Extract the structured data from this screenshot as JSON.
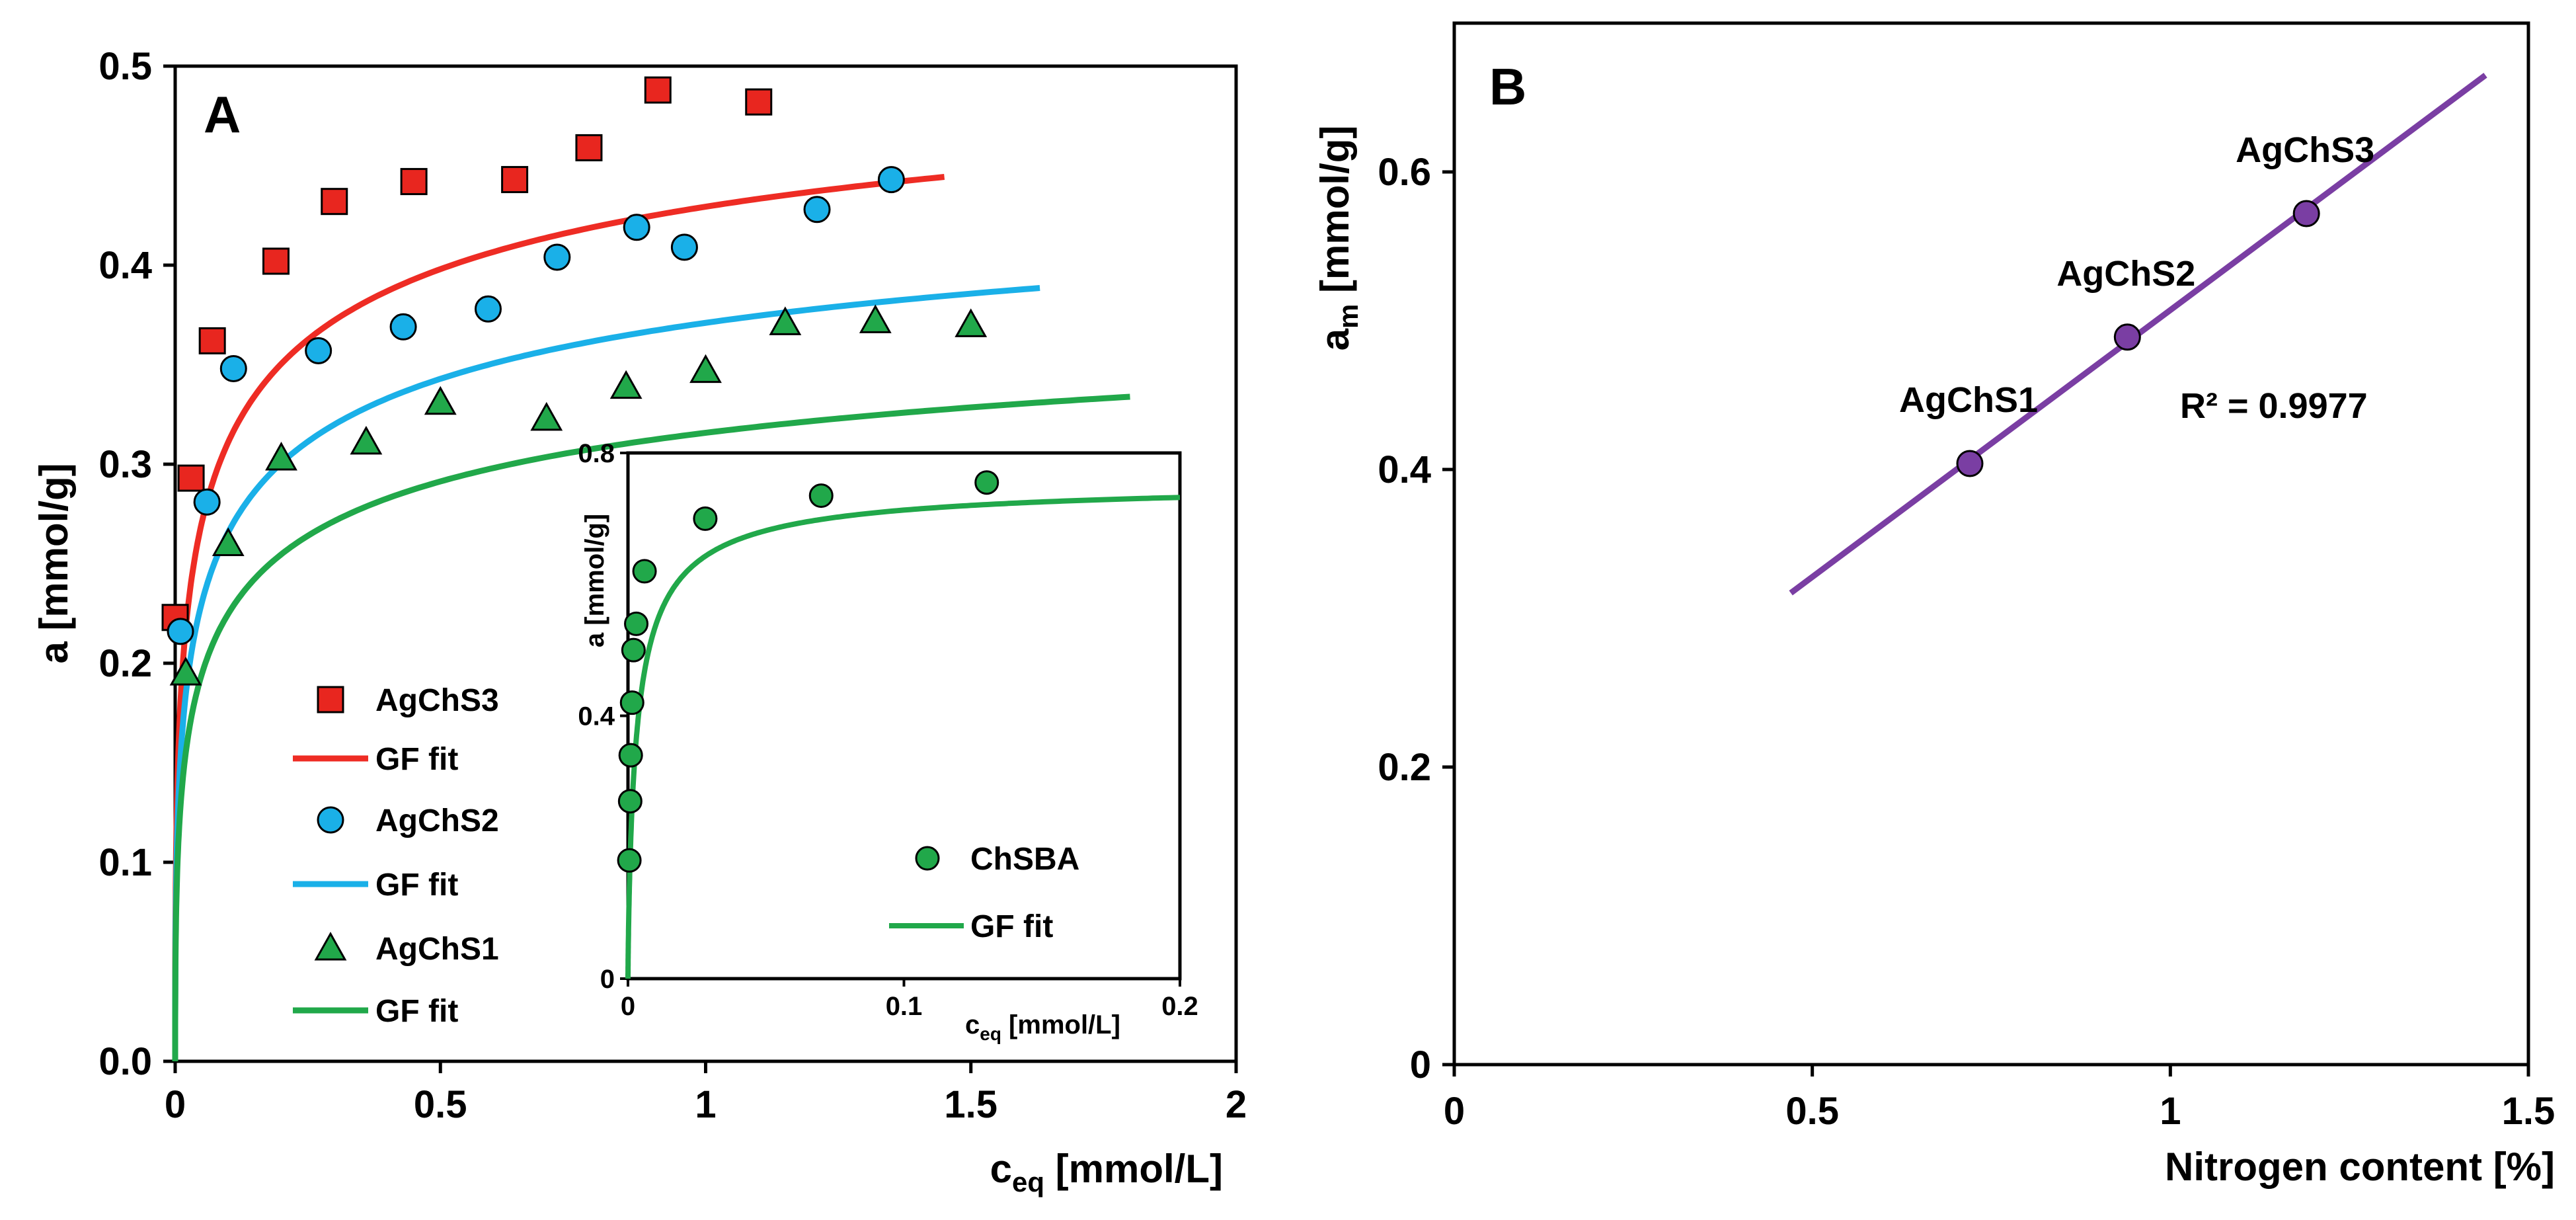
{
  "chart_data": [
    {
      "type": "scatter",
      "panel_label": "A",
      "xlabel_main": "c",
      "xlabel_sub": "eq",
      "xlabel_rest": " [mmol/L]",
      "ylabel": "a [mmol/g]",
      "xlim": [
        0,
        2
      ],
      "ylim": [
        0,
        0.5
      ],
      "xticks": [
        "0",
        "0.5",
        "1",
        "1.5",
        "2"
      ],
      "yticks": [
        "0.0",
        "0.1",
        "0.2",
        "0.3",
        "0.4",
        "0.5"
      ],
      "legend_position": "left-middle",
      "series": [
        {
          "name": "AgChS3",
          "marker": "square",
          "color": "#e8261f",
          "x": [
            0.0,
            0.03,
            0.07,
            0.19,
            0.3,
            0.45,
            0.64,
            0.78,
            0.91,
            1.1
          ],
          "y": [
            0.223,
            0.293,
            0.362,
            0.402,
            0.432,
            0.442,
            0.443,
            0.459,
            0.488,
            0.482
          ],
          "fit_label": "GF fit",
          "fit_color": "#ee2c24",
          "fit": {
            "am": 0.56,
            "K": 17,
            "n": 0.42,
            "x_max": 1.45
          }
        },
        {
          "name": "AgChS2",
          "marker": "circle",
          "color": "#1ab0e8",
          "x": [
            0.01,
            0.06,
            0.11,
            0.27,
            0.43,
            0.59,
            0.72,
            0.87,
            0.96,
            1.21,
            1.35
          ],
          "y": [
            0.216,
            0.281,
            0.348,
            0.357,
            0.369,
            0.378,
            0.404,
            0.419,
            0.409,
            0.428,
            0.443
          ],
          "fit_label": "GF fit",
          "fit_color": "#1ab0e8",
          "fit": {
            "am": 0.49,
            "K": 15,
            "n": 0.42,
            "x_max": 1.63
          }
        },
        {
          "name": "AgChS1",
          "marker": "triangle",
          "color": "#21a84a",
          "x": [
            0.02,
            0.1,
            0.2,
            0.36,
            0.5,
            0.7,
            0.85,
            1.0,
            1.15,
            1.32,
            1.5
          ],
          "y": [
            0.195,
            0.26,
            0.303,
            0.311,
            0.331,
            0.323,
            0.339,
            0.347,
            0.371,
            0.372,
            0.37
          ],
          "fit_label": "GF fit",
          "fit_color": "#21a84a",
          "fit": {
            "am": 0.42,
            "K": 14,
            "n": 0.42,
            "x_max": 1.8
          }
        }
      ],
      "inset": {
        "ylabel": "a [mmol/g]",
        "xlabel_main": "c",
        "xlabel_sub": "eq",
        "xlabel_rest": " [mmol/L]",
        "xlim": [
          0,
          0.2
        ],
        "ylim": [
          0,
          0.8
        ],
        "xticks": [
          "0",
          "0.1",
          "0.2"
        ],
        "yticks": [
          "0",
          "0.4",
          "0.8"
        ],
        "series": [
          {
            "name": "ChSBA",
            "marker": "circle",
            "color": "#21a84a",
            "x": [
              0.0005,
              0.0008,
              0.001,
              0.0015,
              0.002,
              0.003,
              0.006,
              0.028,
              0.07,
              0.13
            ],
            "y": [
              0.18,
              0.27,
              0.34,
              0.42,
              0.5,
              0.54,
              0.62,
              0.7,
              0.735,
              0.755
            ],
            "fit_label": "GF fit",
            "fit_color": "#21a84a",
            "fit": {
              "am": 0.76,
              "K": 300,
              "n": 0.8,
              "x_max": 0.2
            }
          }
        ]
      }
    },
    {
      "type": "scatter",
      "panel_label": "B",
      "xlabel": "Nitrogen content [%]",
      "ylabel_main": "a",
      "ylabel_sub": "m",
      "ylabel_rest": " [mmol/g]",
      "xlim": [
        0,
        1.5
      ],
      "ylim": [
        0,
        0.7
      ],
      "xticks": [
        "0",
        "0.5",
        "1",
        "1.5"
      ],
      "yticks": [
        "0",
        "0.2",
        "0.4",
        "0.6"
      ],
      "color": "#7a3ea3",
      "r2_label": "R² = 0.9977",
      "points": [
        {
          "name": "AgChS1",
          "x": 0.72,
          "y": 0.404
        },
        {
          "name": "AgChS2",
          "x": 0.94,
          "y": 0.489
        },
        {
          "name": "AgChS3",
          "x": 1.19,
          "y": 0.572
        }
      ],
      "line": {
        "x": [
          0.47,
          1.44
        ],
        "y": [
          0.317,
          0.665
        ]
      }
    }
  ]
}
